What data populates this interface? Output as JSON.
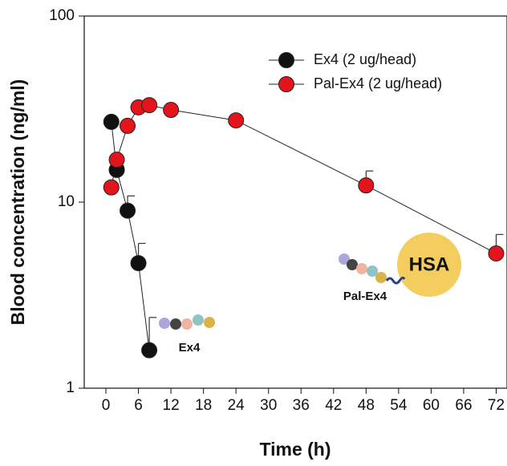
{
  "chart_data": {
    "type": "line",
    "x_label": "Time (h)",
    "y_label": "Blood concentration (ng/ml)",
    "xlim": [
      -4,
      74
    ],
    "xticks": [
      0,
      6,
      12,
      18,
      24,
      30,
      36,
      42,
      48,
      54,
      60,
      66,
      72
    ],
    "ylim": [
      1,
      100
    ],
    "yticks": [
      1,
      10,
      100
    ],
    "y_scale": "log",
    "legend": "top-right",
    "series": [
      {
        "name": "Ex4 (2 ug/head)",
        "color": "#111111",
        "x": [
          1,
          2,
          4,
          6,
          8
        ],
        "values": [
          27,
          14.9,
          9.0,
          4.7,
          1.6
        ],
        "errors": [
          null,
          0.8,
          1.8,
          1.3,
          0.8
        ]
      },
      {
        "name": "Pal-Ex4 (2 ug/head)",
        "color": "#e3141b",
        "x": [
          1,
          2,
          4,
          6,
          8,
          12,
          24,
          48,
          72
        ],
        "values": [
          12.0,
          16.9,
          25.7,
          32.3,
          33.2,
          31.3,
          27.5,
          12.3,
          5.3
        ],
        "errors": [
          null,
          null,
          null,
          null,
          null,
          null,
          null,
          2.4,
          1.4
        ]
      }
    ],
    "annotations": [
      "Ex4",
      "Pal-Ex4",
      "HSA"
    ]
  }
}
